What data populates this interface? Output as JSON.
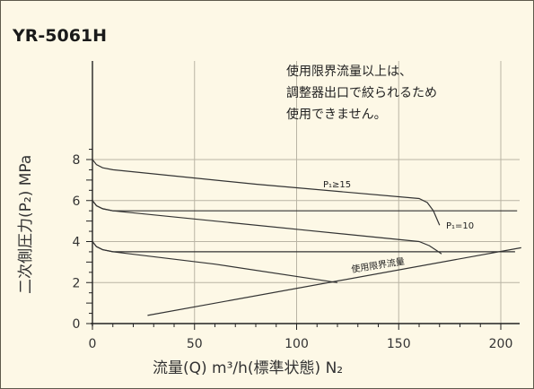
{
  "chart_data": {
    "type": "line",
    "title": "YR-5061H",
    "xlabel": "流量(Q) m³/h(標準状態)   N₂",
    "ylabel": "二次側圧力(P₂) MPa",
    "xlim": [
      0,
      210
    ],
    "ylim": [
      0,
      9
    ],
    "x_ticks": [
      "0",
      "50",
      "100",
      "150",
      "200"
    ],
    "y_ticks": [
      "0",
      "2",
      "4",
      "6",
      "8"
    ],
    "grid": true,
    "annotation": [
      "使用限界流量以上は、",
      "調整器出口で絞られるため",
      "使用できません。"
    ],
    "series": [
      {
        "name": "P₁≥15",
        "points": [
          [
            0,
            8.0
          ],
          [
            2,
            7.75
          ],
          [
            5,
            7.6
          ],
          [
            10,
            7.5
          ],
          [
            80,
            6.8
          ],
          [
            160,
            6.1
          ],
          [
            164,
            5.9
          ],
          [
            167,
            5.5
          ],
          [
            170,
            4.8
          ]
        ]
      },
      {
        "name": "",
        "points": [
          [
            0,
            6.0
          ],
          [
            2,
            5.75
          ],
          [
            5,
            5.6
          ],
          [
            10,
            5.5
          ],
          [
            207,
            5.5
          ],
          [
            208,
            5.5
          ]
        ]
      },
      {
        "name": "P₁=10",
        "points": [
          [
            0,
            6.0
          ],
          [
            2,
            5.75
          ],
          [
            5,
            5.6
          ],
          [
            10,
            5.5
          ],
          [
            100,
            4.6
          ],
          [
            160,
            4.0
          ],
          [
            165,
            3.8
          ],
          [
            168,
            3.6
          ],
          [
            171,
            3.4
          ]
        ]
      },
      {
        "name": "",
        "points": [
          [
            0,
            4.0
          ],
          [
            2,
            3.75
          ],
          [
            5,
            3.6
          ],
          [
            10,
            3.5
          ],
          [
            207,
            3.5
          ]
        ]
      },
      {
        "name": "",
        "points": [
          [
            0,
            4.0
          ],
          [
            2,
            3.75
          ],
          [
            5,
            3.6
          ],
          [
            10,
            3.5
          ],
          [
            60,
            2.9
          ],
          [
            120,
            2.0
          ]
        ]
      }
    ],
    "limit_line": {
      "name": "使用限界流量",
      "points": [
        [
          27,
          0.4
        ],
        [
          210,
          3.7
        ]
      ]
    }
  }
}
